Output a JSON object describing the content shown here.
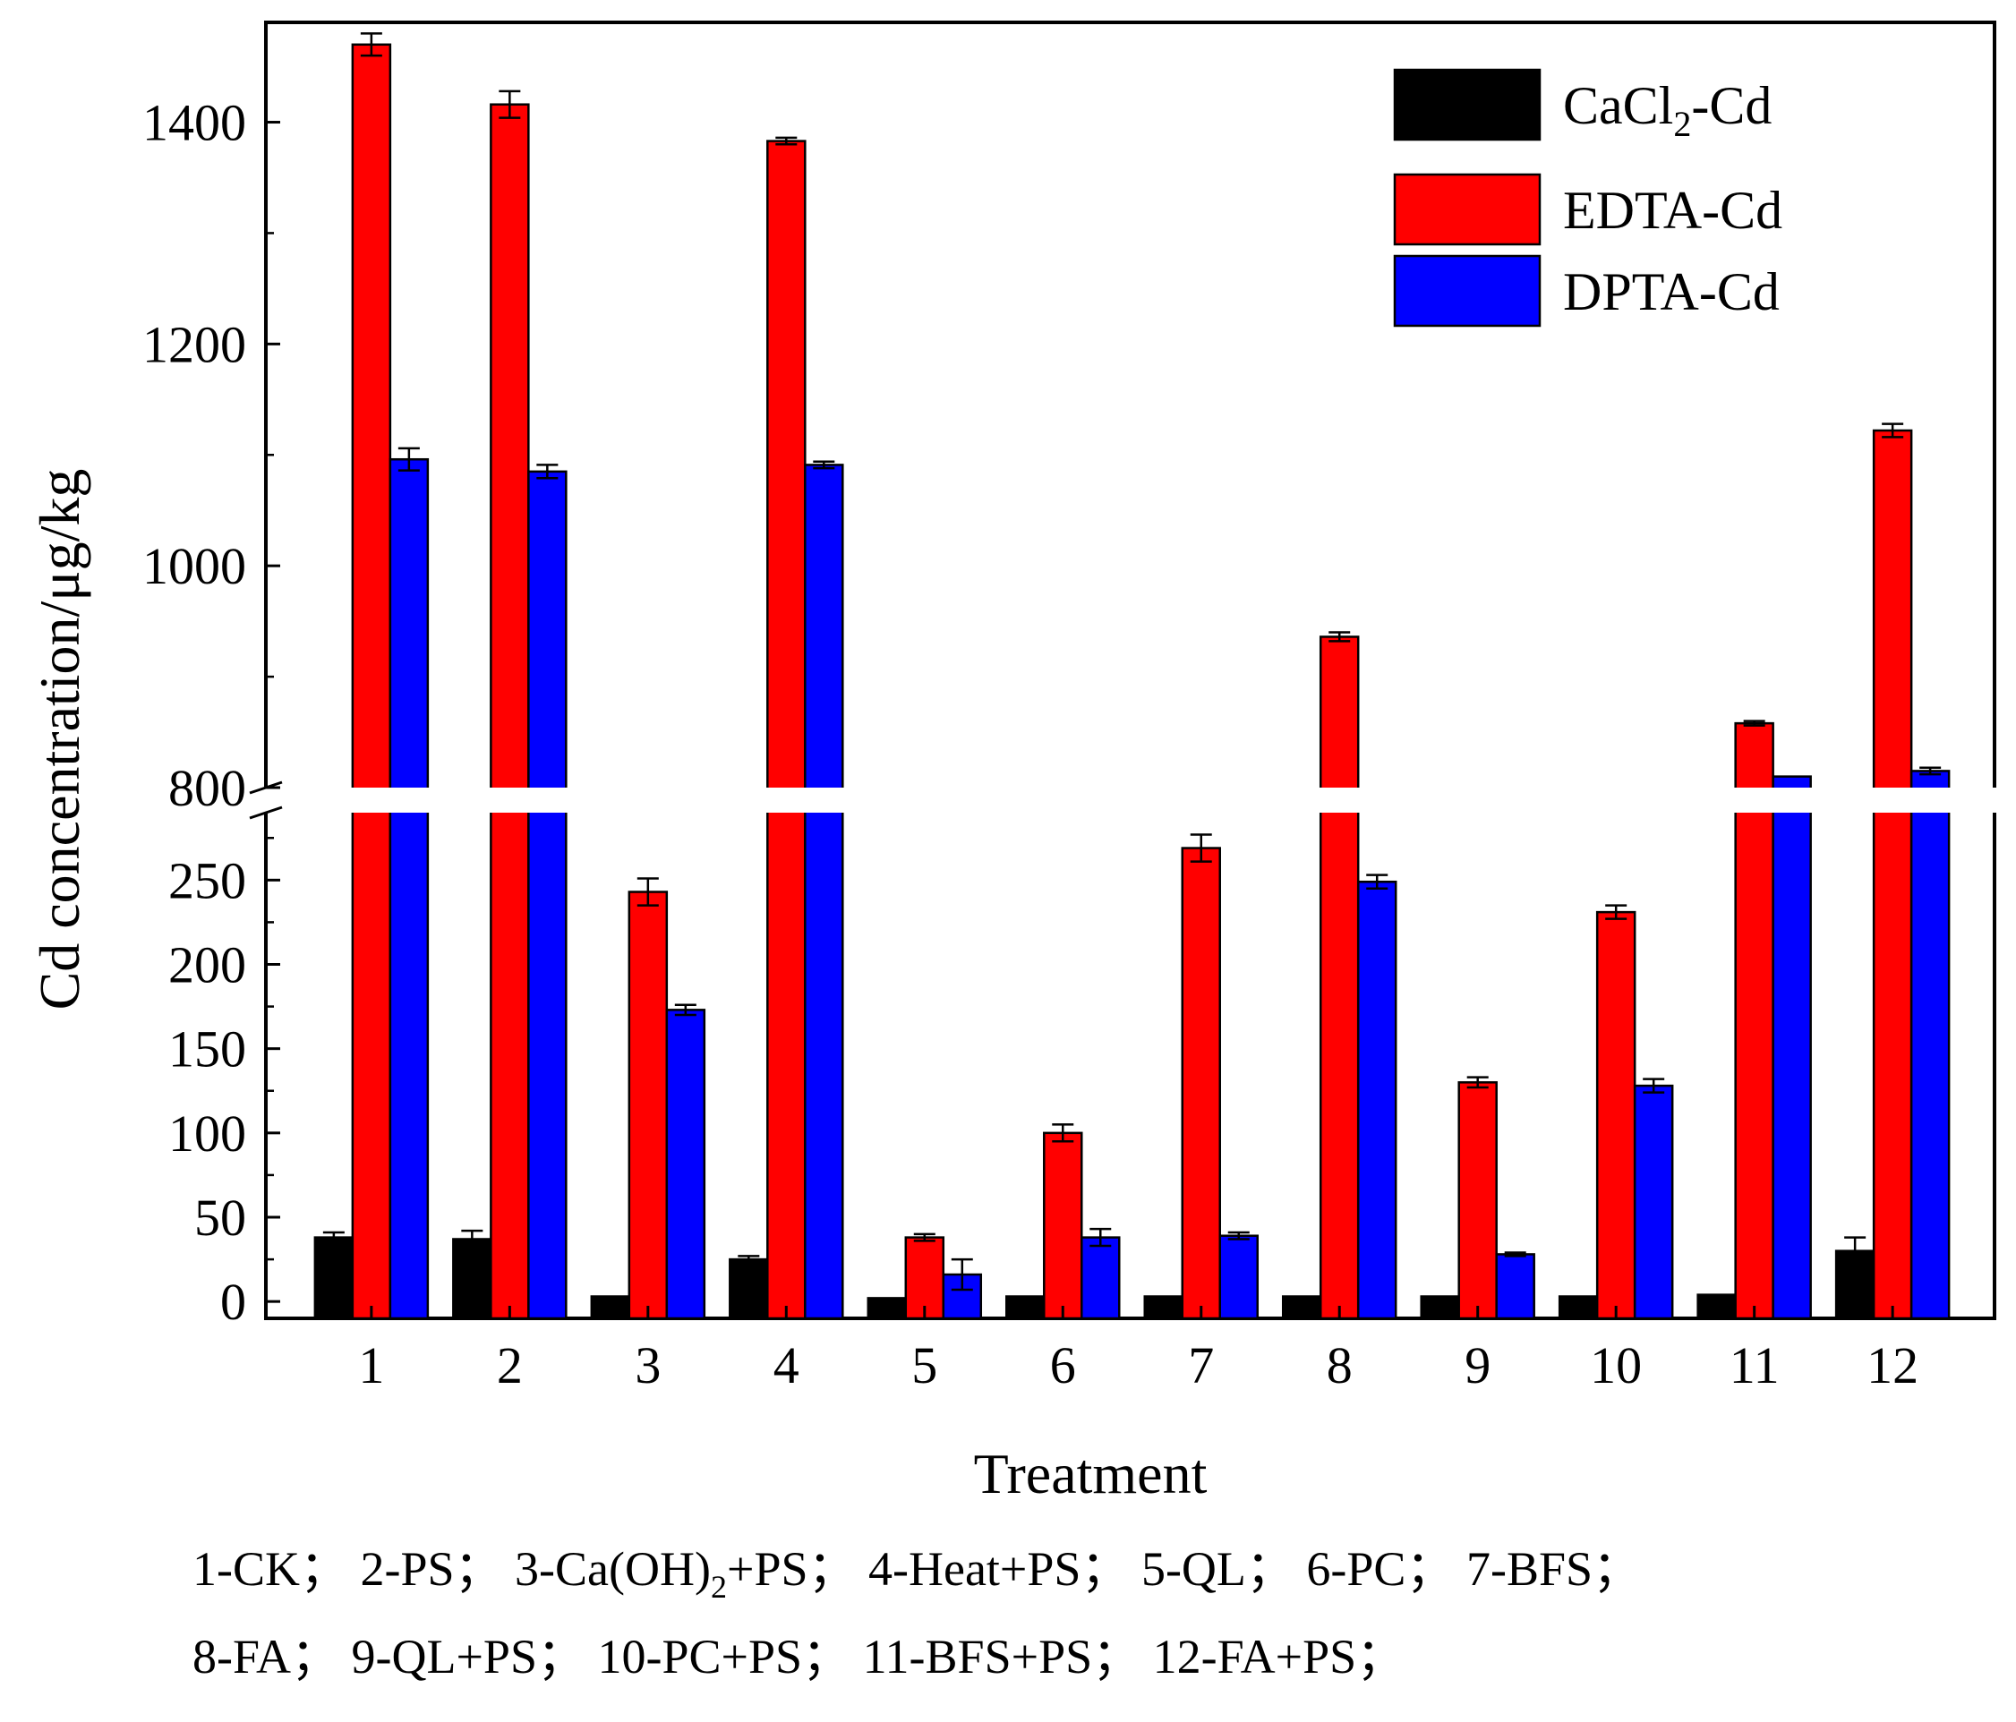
{
  "chart_data": {
    "type": "bar",
    "title": "",
    "xlabel": "Treatment",
    "ylabel": "Cd concentration/μg/kg",
    "categories": [
      "1",
      "2",
      "3",
      "4",
      "5",
      "6",
      "7",
      "8",
      "9",
      "10",
      "11",
      "12"
    ],
    "y_axis_break": {
      "lower_range": [
        -10,
        290
      ],
      "upper_range": [
        800,
        1490
      ]
    },
    "y_ticks_lower": [
      0,
      50,
      100,
      150,
      200,
      250
    ],
    "y_ticks_upper": [
      800,
      1000,
      1200,
      1400
    ],
    "series": [
      {
        "name": "CaCl2-Cd",
        "label_main": "CaCl",
        "label_sub": "2",
        "label_tail": "-Cd",
        "color": "#000000",
        "values": [
          38,
          37,
          3,
          25,
          2,
          3,
          3,
          3,
          3,
          3,
          4,
          30
        ],
        "errors": [
          3,
          5,
          0,
          2,
          0,
          0,
          0,
          0,
          0,
          0,
          0,
          8
        ]
      },
      {
        "name": "EDTA-Cd",
        "label_main": "EDTA-Cd",
        "color": "#ff0000",
        "values": [
          1470,
          1416,
          243,
          1383,
          38,
          100,
          269,
          936,
          130,
          231,
          858,
          1122
        ],
        "errors": [
          10,
          12,
          8,
          3,
          2,
          5,
          8,
          4,
          3,
          4,
          2,
          6
        ]
      },
      {
        "name": "DPTA-Cd",
        "label_main": "DPTA-Cd",
        "color": "#0000ff",
        "values": [
          1096,
          1085,
          173,
          1091,
          16,
          38,
          39,
          249,
          28,
          128,
          810,
          815
        ],
        "errors": [
          10,
          6,
          3,
          3,
          9,
          5,
          2,
          4,
          1,
          4,
          0,
          3
        ]
      }
    ],
    "legend_position": "top-right",
    "grid": false
  },
  "footnote": {
    "line1": [
      {
        "main": "1-CK；"
      },
      {
        "main": "2-PS；"
      },
      {
        "main": "3-Ca(OH)",
        "sub": "2",
        "tail": "+PS；"
      },
      {
        "main": "4-Heat+PS；"
      },
      {
        "main": "5-QL；"
      },
      {
        "main": "6-PC；"
      },
      {
        "main": "7-BFS；"
      }
    ],
    "line2": [
      {
        "main": "8-FA；"
      },
      {
        "main": "9-QL+PS；"
      },
      {
        "main": "10-PC+PS；"
      },
      {
        "main": "11-BFS+PS；"
      },
      {
        "main": "12-FA+PS；"
      }
    ]
  }
}
